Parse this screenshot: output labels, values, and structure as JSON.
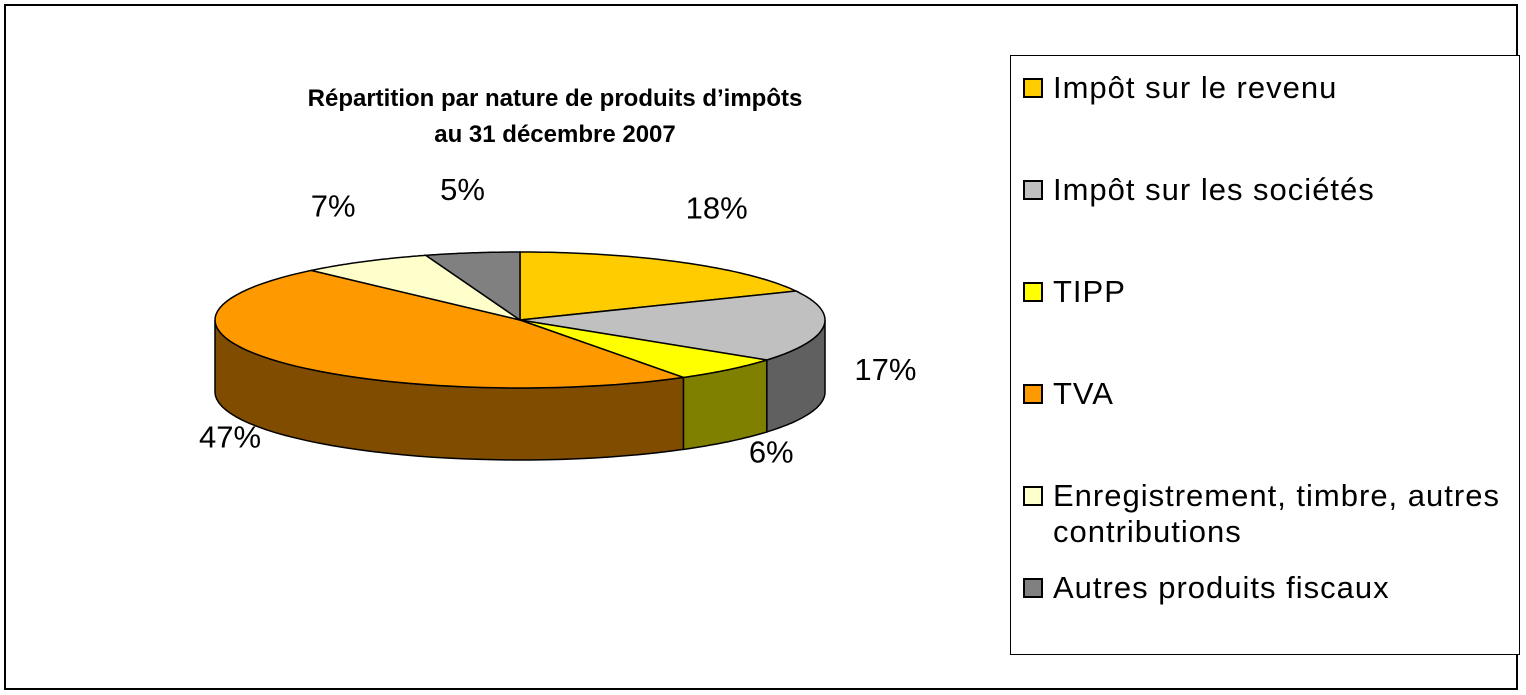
{
  "chart_data": {
    "type": "pie3d",
    "title": [
      "Répartition par nature de produits d’impôts",
      "au 31 décembre 2007"
    ],
    "categories": [
      "Impôt sur le revenu",
      "Impôt sur les sociétés",
      "TIPP",
      "TVA",
      "Enregistrement, timbre, autres contributions",
      "Autres produits fiscaux"
    ],
    "values": [
      18,
      17,
      6,
      47,
      7,
      5
    ],
    "value_labels": [
      "18%",
      "17%",
      "6%",
      "47%",
      "7%",
      "5%"
    ],
    "colors": [
      "#ffcc00",
      "#c0c0c0",
      "#ffff00",
      "#ff9900",
      "#ffffcc",
      "#808080"
    ],
    "legend": "right"
  }
}
